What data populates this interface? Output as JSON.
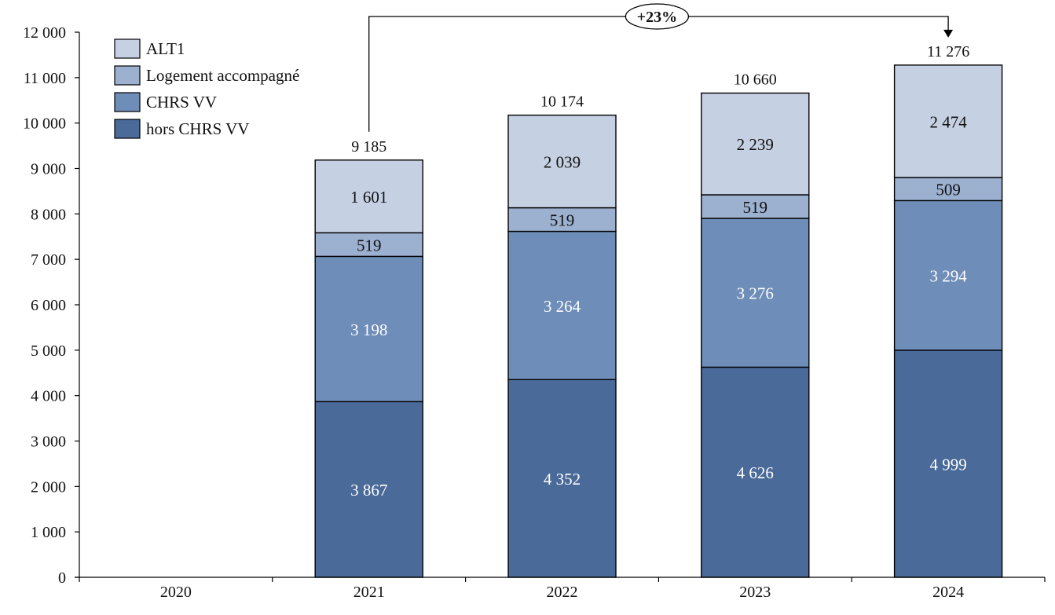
{
  "chart_data": {
    "type": "bar",
    "stacked": true,
    "categories": [
      "2020",
      "2021",
      "2022",
      "2023",
      "2024"
    ],
    "series": [
      {
        "name": "hors CHRS VV",
        "values": [
          null,
          3867,
          4352,
          4626,
          4999
        ],
        "color": "#4a6a99",
        "label_color": "#ffffff",
        "labels": [
          "",
          "3 867",
          "4 352",
          "4 626",
          "4 999"
        ]
      },
      {
        "name": "CHRS VV",
        "values": [
          null,
          3198,
          3264,
          3276,
          3294
        ],
        "color": "#6e8db8",
        "label_color": "#ffffff",
        "labels": [
          "",
          "3 198",
          "3 264",
          "3 276",
          "3 294"
        ]
      },
      {
        "name": "Logement accompagné",
        "values": [
          null,
          519,
          519,
          519,
          509
        ],
        "color": "#9cb0d0",
        "label_color": "#111111",
        "labels": [
          "",
          "519",
          "519",
          "519",
          "509"
        ]
      },
      {
        "name": "ALT1",
        "values": [
          null,
          1601,
          2039,
          2239,
          2474
        ],
        "color": "#c5d0e2",
        "label_color": "#111111",
        "labels": [
          "",
          "1 601",
          "2 039",
          "2 239",
          "2 474"
        ]
      }
    ],
    "totals": [
      null,
      9185,
      10174,
      10660,
      11276
    ],
    "total_labels": [
      "",
      "9 185",
      "10 174",
      "10 660",
      "11 276"
    ],
    "ylim": [
      0,
      12000
    ],
    "yticks": [
      0,
      1000,
      2000,
      3000,
      4000,
      5000,
      6000,
      7000,
      8000,
      9000,
      10000,
      11000,
      12000
    ],
    "ytick_labels": [
      "0",
      "1 000",
      "2 000",
      "3 000",
      "4 000",
      "5 000",
      "6 000",
      "7 000",
      "8 000",
      "9 000",
      "10 000",
      "11 000",
      "12 000"
    ],
    "grid": false,
    "legend_position": "top-left",
    "legend_order": [
      "ALT1",
      "Logement accompagné",
      "CHRS VV",
      "hors CHRS VV"
    ],
    "annotation": {
      "text": "+23%",
      "from": "2021",
      "to": "2024"
    },
    "xlabel": "",
    "ylabel": "",
    "title": ""
  }
}
